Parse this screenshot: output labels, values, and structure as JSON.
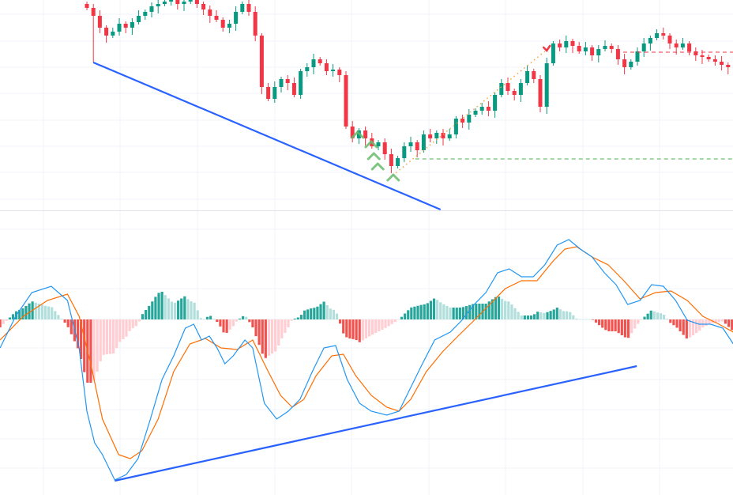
{
  "chart_data": [
    {
      "type": "candlestick",
      "pane": "price",
      "grid": true,
      "colors": {
        "up": "#089981",
        "down": "#f23645"
      },
      "closes": [
        240,
        230,
        215,
        205,
        210,
        220,
        215,
        222,
        230,
        235,
        242,
        245,
        248,
        250,
        245,
        248,
        250,
        245,
        238,
        230,
        225,
        215,
        220,
        235,
        245,
        235,
        205,
        140,
        125,
        140,
        150,
        145,
        130,
        160,
        165,
        175,
        170,
        160,
        162,
        155,
        90,
        75,
        85,
        75,
        65,
        70,
        55,
        40,
        50,
        65,
        70,
        60,
        80,
        75,
        82,
        75,
        80,
        100,
        95,
        105,
        110,
        115,
        110,
        130,
        145,
        135,
        130,
        145,
        160,
        150,
        115,
        170,
        195,
        190,
        198,
        192,
        185,
        190,
        180,
        188,
        192,
        188,
        175,
        165,
        172,
        185,
        195,
        202,
        208,
        205,
        195,
        190,
        195,
        185,
        180,
        178,
        175,
        172,
        168,
        165
      ],
      "first_open": 245,
      "drawings": {
        "trend_line": {
          "color": "#2962ff",
          "from": [
            1,
            171
          ],
          "to": [
            54.6,
            -15
          ]
        },
        "support_level": {
          "color": "#4caf50",
          "price": 49,
          "from_index": 50.7
        },
        "resistance_level": {
          "color": "#f23645",
          "price": 184,
          "from_index": 81.7
        },
        "projection_line": {
          "color": "#f7a440",
          "from": [
            47.2,
            28
          ],
          "to": [
            70.7,
            185
          ]
        },
        "buy_markers": {
          "color": "#66bb6a",
          "points": [
            [
              41.8,
              82
            ],
            [
              43.9,
              70
            ],
            [
              44.3,
              55
            ],
            [
              44.9,
              42
            ],
            [
              47.3,
              28
            ]
          ]
        },
        "sell_marker": {
          "color": "#f23645",
          "point": [
            71,
            186
          ]
        }
      }
    },
    {
      "type": "macd",
      "pane": "oscillator",
      "grid": true,
      "colors": {
        "macd": "#2196f3",
        "signal": "#ff6d00",
        "hist_up_strong": "#26a69a",
        "hist_up_weak": "#b2dfdb",
        "hist_down_strong": "#ef5350",
        "hist_down_weak": "#ffcdd2"
      },
      "macd_line": [
        [
          -13.4,
          -0.36
        ],
        [
          -11,
          0.04
        ],
        [
          -8.5,
          0.34
        ],
        [
          -5.5,
          0.42
        ],
        [
          -3,
          0.24
        ],
        [
          -1.2,
          -0.36
        ],
        [
          0,
          -1.16
        ],
        [
          1.2,
          -1.56
        ],
        [
          2.4,
          -1.71
        ],
        [
          4.3,
          -2.03
        ],
        [
          6.1,
          -1.96
        ],
        [
          7.9,
          -1.76
        ],
        [
          9.8,
          -1.26
        ],
        [
          11.6,
          -0.76
        ],
        [
          13.4,
          -0.46
        ],
        [
          15.2,
          -0.11
        ],
        [
          16.5,
          -0.06
        ],
        [
          17.7,
          -0.26
        ],
        [
          18.9,
          -0.21
        ],
        [
          20.1,
          -0.36
        ],
        [
          21.3,
          -0.56
        ],
        [
          22.6,
          -0.46
        ],
        [
          24.4,
          -0.26
        ],
        [
          25.6,
          -0.36
        ],
        [
          27.4,
          -1.06
        ],
        [
          29.3,
          -1.26
        ],
        [
          31.1,
          -1.16
        ],
        [
          32.9,
          -1.01
        ],
        [
          34.8,
          -0.66
        ],
        [
          36.6,
          -0.36
        ],
        [
          38.4,
          -0.33
        ],
        [
          40.2,
          -0.76
        ],
        [
          42.1,
          -1.06
        ],
        [
          43.9,
          -1.16
        ],
        [
          46.3,
          -1.21
        ],
        [
          48.2,
          -1.16
        ],
        [
          50,
          -0.86
        ],
        [
          51.8,
          -0.56
        ],
        [
          53.7,
          -0.26
        ],
        [
          56.1,
          -0.16
        ],
        [
          57.9,
          -0.01
        ],
        [
          59.8,
          0.19
        ],
        [
          61.6,
          0.34
        ],
        [
          63.4,
          0.59
        ],
        [
          65.2,
          0.64
        ],
        [
          67.1,
          0.54
        ],
        [
          68.9,
          0.54
        ],
        [
          70.7,
          0.69
        ],
        [
          72.6,
          0.94
        ],
        [
          74.4,
          1.01
        ],
        [
          76.2,
          0.89
        ],
        [
          78,
          0.79
        ],
        [
          79.9,
          0.59
        ],
        [
          81.7,
          0.44
        ],
        [
          83.5,
          0.19
        ],
        [
          85.4,
          0.24
        ],
        [
          87.2,
          0.44
        ],
        [
          89,
          0.42
        ],
        [
          90.9,
          0.24
        ],
        [
          92.7,
          -0.01
        ],
        [
          94.5,
          -0.06
        ],
        [
          96.3,
          -0.06
        ],
        [
          98.2,
          -0.11
        ],
        [
          99.8,
          -0.31
        ]
      ],
      "signal_line": [
        [
          -13.4,
          -0.26
        ],
        [
          -9.8,
          0.04
        ],
        [
          -6.1,
          0.24
        ],
        [
          -3,
          0.32
        ],
        [
          -1.2,
          0.04
        ],
        [
          0.6,
          -0.56
        ],
        [
          2.4,
          -1.26
        ],
        [
          4.9,
          -1.71
        ],
        [
          6.7,
          -1.76
        ],
        [
          8.5,
          -1.66
        ],
        [
          11,
          -1.26
        ],
        [
          13.4,
          -0.66
        ],
        [
          15.9,
          -0.31
        ],
        [
          18.3,
          -0.24
        ],
        [
          20.7,
          -0.36
        ],
        [
          23.2,
          -0.38
        ],
        [
          25.6,
          -0.26
        ],
        [
          28,
          -0.66
        ],
        [
          29.9,
          -0.96
        ],
        [
          31.7,
          -1.11
        ],
        [
          33.5,
          -1.01
        ],
        [
          35.4,
          -0.71
        ],
        [
          37.8,
          -0.46
        ],
        [
          39.6,
          -0.44
        ],
        [
          41.5,
          -0.71
        ],
        [
          43.9,
          -0.96
        ],
        [
          46.3,
          -1.11
        ],
        [
          48.2,
          -1.16
        ],
        [
          50,
          -1.01
        ],
        [
          52.4,
          -0.66
        ],
        [
          54.9,
          -0.41
        ],
        [
          57.3,
          -0.21
        ],
        [
          59.8,
          -0.01
        ],
        [
          62.2,
          0.19
        ],
        [
          64.6,
          0.39
        ],
        [
          67.1,
          0.49
        ],
        [
          69.5,
          0.49
        ],
        [
          72,
          0.74
        ],
        [
          73.8,
          0.89
        ],
        [
          75.6,
          0.92
        ],
        [
          78,
          0.79
        ],
        [
          80.5,
          0.69
        ],
        [
          82.9,
          0.49
        ],
        [
          85.4,
          0.26
        ],
        [
          87.8,
          0.34
        ],
        [
          90.2,
          0.36
        ],
        [
          92.7,
          0.24
        ],
        [
          95.1,
          0.04
        ],
        [
          97.6,
          -0.06
        ],
        [
          99.8,
          -0.16
        ]
      ],
      "drawings": {
        "trend_line": {
          "color": "#2962ff",
          "from": [
            4.3,
            -2.04
          ],
          "to": [
            84.9,
            -0.59
          ]
        }
      }
    }
  ]
}
